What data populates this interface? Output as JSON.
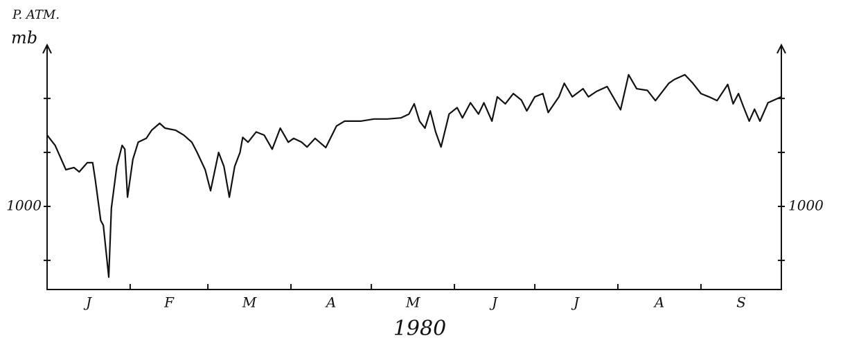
{
  "chart_data": {
    "type": "line",
    "ylabel": "P. ATM.",
    "yunit": "mb",
    "xlabel": "1980",
    "categories": [
      "J",
      "F",
      "M",
      "A",
      "M",
      "J",
      "J",
      "A",
      "S"
    ],
    "xlim": [
      0,
      274
    ],
    "xticks": [
      0,
      31,
      60,
      91,
      121,
      152,
      182,
      213,
      244,
      274
    ],
    "ylim": [
      984.6,
      1029.9
    ],
    "yticks": [
      1000
    ],
    "minor_yticks": [
      990,
      1010,
      1020
    ],
    "color": "#111111",
    "x": [
      0,
      3,
      7,
      10,
      12,
      15,
      17,
      18,
      20,
      21,
      23,
      24,
      26,
      28,
      29,
      30,
      32,
      34,
      37,
      39,
      42,
      44,
      48,
      51,
      54,
      56,
      59,
      61,
      64,
      66,
      68,
      70,
      72,
      73,
      75,
      78,
      81,
      84,
      87,
      90,
      92,
      95,
      97,
      100,
      104,
      108,
      111,
      117,
      122,
      127,
      132,
      135,
      137,
      139,
      141,
      143,
      145,
      147,
      150,
      153,
      155,
      158,
      161,
      163,
      166,
      168,
      171,
      174,
      177,
      179,
      182,
      185,
      187,
      191,
      193,
      196,
      200,
      202,
      205,
      209,
      214,
      217,
      220,
      224,
      227,
      232,
      234,
      238,
      241,
      244,
      247,
      250,
      254,
      256,
      258,
      260,
      262,
      264,
      266,
      269,
      274
    ],
    "values": [
      1013.2,
      1011.3,
      1006.8,
      1007.2,
      1006.4,
      1008.1,
      1008.1,
      1004.9,
      997.4,
      996.5,
      986.9,
      999.7,
      1007.4,
      1011.3,
      1010.6,
      1001.7,
      1008.7,
      1011.9,
      1012.6,
      1014.1,
      1015.4,
      1014.5,
      1014.1,
      1013.2,
      1011.9,
      1010.0,
      1006.8,
      1002.9,
      1010.0,
      1007.4,
      1001.7,
      1007.4,
      1010.0,
      1012.8,
      1011.9,
      1013.8,
      1013.2,
      1010.6,
      1014.5,
      1011.9,
      1012.6,
      1011.9,
      1011.0,
      1012.6,
      1010.9,
      1014.9,
      1015.8,
      1015.8,
      1016.2,
      1016.2,
      1016.4,
      1017.1,
      1019.0,
      1015.8,
      1014.5,
      1017.7,
      1013.8,
      1011.0,
      1017.1,
      1018.3,
      1016.4,
      1019.2,
      1017.1,
      1019.2,
      1015.8,
      1020.3,
      1019.0,
      1020.9,
      1019.7,
      1017.7,
      1020.3,
      1020.9,
      1017.4,
      1020.3,
      1022.8,
      1020.3,
      1021.8,
      1020.3,
      1021.3,
      1022.2,
      1017.9,
      1024.4,
      1021.8,
      1021.5,
      1019.6,
      1022.8,
      1023.5,
      1024.4,
      1022.8,
      1020.9,
      1020.3,
      1019.6,
      1022.6,
      1019.0,
      1020.9,
      1018.3,
      1015.8,
      1018.0,
      1015.8,
      1019.2,
      1020.3
    ]
  }
}
